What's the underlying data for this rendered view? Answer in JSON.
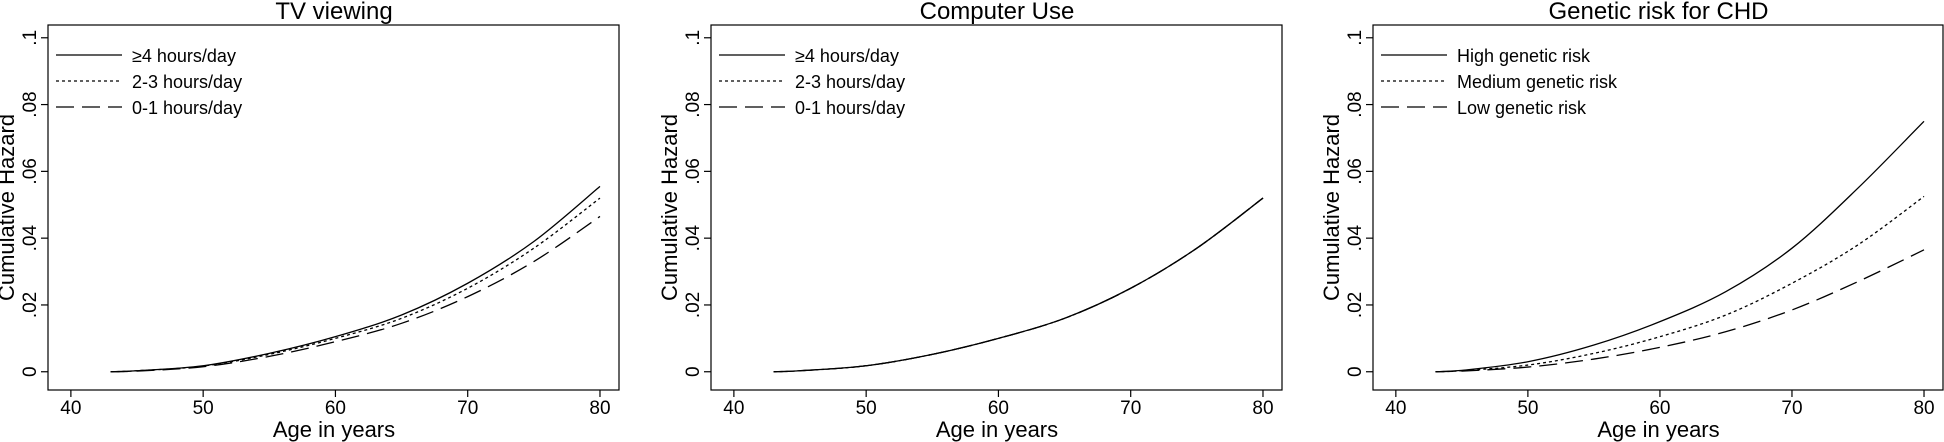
{
  "chart_data": [
    {
      "type": "line",
      "title": "TV viewing",
      "xlabel": "Age in years",
      "ylabel": "Cumulative Hazard",
      "xlim": [
        40,
        80
      ],
      "ylim": [
        0,
        0.1
      ],
      "xticks": [
        40,
        50,
        60,
        70,
        80
      ],
      "yticks": [
        0,
        0.02,
        0.04,
        0.06,
        0.08,
        0.1
      ],
      "ytick_labels": [
        "0",
        ".02",
        ".04",
        ".06",
        ".08",
        ".1"
      ],
      "grid": false,
      "legend_position": "top-left",
      "x": [
        43,
        45,
        50,
        55,
        60,
        65,
        70,
        75,
        80
      ],
      "series": [
        {
          "name": "≥4 hours/day",
          "dash": "solid",
          "values": [
            0,
            0.0003,
            0.0018,
            0.0055,
            0.0105,
            0.017,
            0.0265,
            0.039,
            0.0555
          ]
        },
        {
          "name": "2-3 hours/day",
          "dash": "dotted",
          "values": [
            0,
            0.0003,
            0.0017,
            0.0052,
            0.01,
            0.016,
            0.025,
            0.037,
            0.052
          ]
        },
        {
          "name": "0-1 hours/day",
          "dash": "dashed",
          "values": [
            0,
            0.0002,
            0.0015,
            0.0046,
            0.009,
            0.0145,
            0.0225,
            0.033,
            0.0465
          ]
        }
      ]
    },
    {
      "type": "line",
      "title": "Computer Use",
      "xlabel": "Age in years",
      "ylabel": "Cumulative Hazard",
      "xlim": [
        40,
        80
      ],
      "ylim": [
        0,
        0.1
      ],
      "xticks": [
        40,
        50,
        60,
        70,
        80
      ],
      "yticks": [
        0,
        0.02,
        0.04,
        0.06,
        0.08,
        0.1
      ],
      "ytick_labels": [
        "0",
        ".02",
        ".04",
        ".06",
        ".08",
        ".1"
      ],
      "grid": false,
      "legend_position": "top-left",
      "x": [
        43,
        45,
        50,
        55,
        60,
        65,
        70,
        75,
        80
      ],
      "series": [
        {
          "name": "≥4 hours/day",
          "dash": "solid",
          "values": [
            0,
            0.0003,
            0.0018,
            0.0052,
            0.01,
            0.016,
            0.025,
            0.037,
            0.052
          ]
        },
        {
          "name": "2-3 hours/day",
          "dash": "dotted",
          "values": [
            0,
            0.0003,
            0.0018,
            0.0052,
            0.01,
            0.016,
            0.025,
            0.037,
            0.052
          ]
        },
        {
          "name": "0-1 hours/day",
          "dash": "dashed",
          "values": [
            0,
            0.0003,
            0.0018,
            0.0052,
            0.01,
            0.016,
            0.025,
            0.037,
            0.052
          ]
        }
      ]
    },
    {
      "type": "line",
      "title": "Genetic risk for CHD",
      "xlabel": "Age in years",
      "ylabel": "Cumulative Hazard",
      "xlim": [
        40,
        80
      ],
      "ylim": [
        0,
        0.1
      ],
      "xticks": [
        40,
        50,
        60,
        70,
        80
      ],
      "yticks": [
        0,
        0.02,
        0.04,
        0.06,
        0.08,
        0.1
      ],
      "ytick_labels": [
        "0",
        ".02",
        ".04",
        ".06",
        ".08",
        ".1"
      ],
      "grid": false,
      "legend_position": "top-left",
      "x": [
        43,
        45,
        50,
        55,
        60,
        65,
        70,
        75,
        80
      ],
      "series": [
        {
          "name": "High genetic risk",
          "dash": "solid",
          "values": [
            0,
            0.0004,
            0.003,
            0.008,
            0.015,
            0.024,
            0.037,
            0.055,
            0.075
          ]
        },
        {
          "name": "Medium genetic risk",
          "dash": "dotted",
          "values": [
            0,
            0.0003,
            0.002,
            0.0055,
            0.0105,
            0.017,
            0.0265,
            0.038,
            0.0525
          ]
        },
        {
          "name": "Low genetic risk",
          "dash": "dashed",
          "values": [
            0,
            0.0002,
            0.0014,
            0.0038,
            0.0073,
            0.012,
            0.0185,
            0.027,
            0.0365
          ]
        }
      ]
    }
  ]
}
